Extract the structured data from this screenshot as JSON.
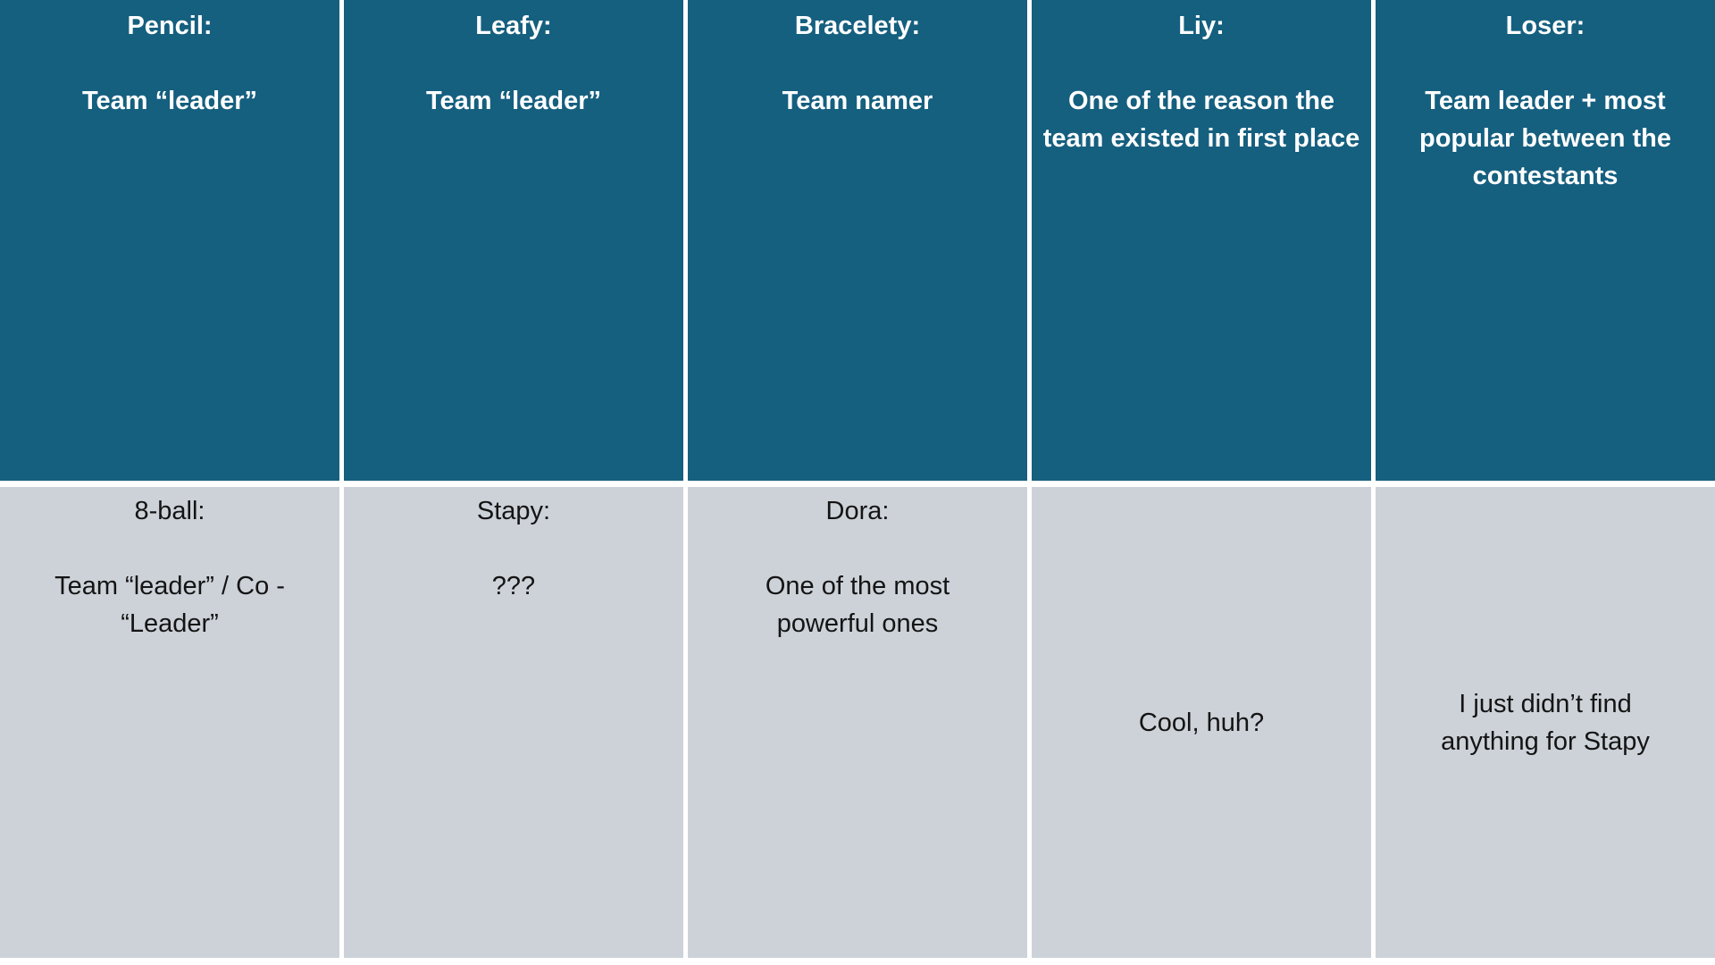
{
  "colors": {
    "header_bg": "#155F7F",
    "header_text": "#FFFFFF",
    "body_bg": "#CDD2D9",
    "body_text": "#141414",
    "grid_line": "#FFFFFF"
  },
  "table": {
    "columns": [
      {
        "header": {
          "title": "Pencil:",
          "subtitle": "Team “leader”"
        },
        "body": {
          "title": "8-ball:",
          "text": "Team “leader” / Co - “Leader”"
        }
      },
      {
        "header": {
          "title": "Leafy:",
          "subtitle": "Team “leader”"
        },
        "body": {
          "title": "Stapy:",
          "text": "???"
        }
      },
      {
        "header": {
          "title": "Bracelety:",
          "subtitle": "Team namer"
        },
        "body": {
          "title": "Dora:",
          "text": "One of the most powerful ones"
        }
      },
      {
        "header": {
          "title": "Liy:",
          "subtitle": "One of the reason the team existed in first place"
        },
        "body": {
          "text": "Cool, huh?"
        }
      },
      {
        "header": {
          "title": "Loser:",
          "subtitle": "Team leader + most popular between the contestants"
        },
        "body": {
          "text": "I just didn’t find anything for Stapy"
        }
      }
    ]
  }
}
